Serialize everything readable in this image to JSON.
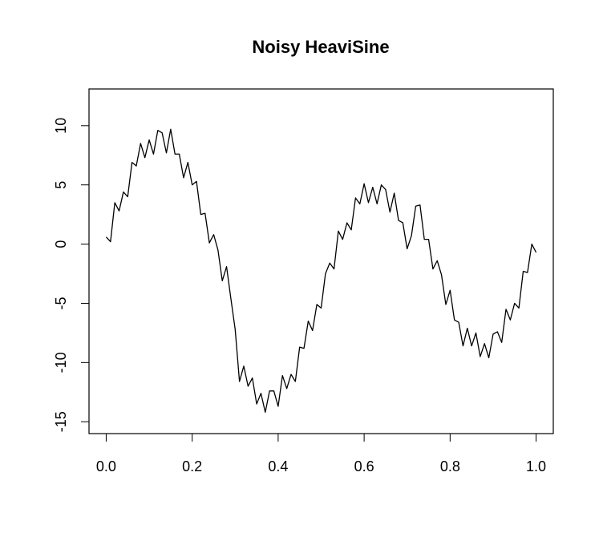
{
  "chart_data": {
    "type": "line",
    "title": "Noisy HeaviSine",
    "x": [
      0,
      0.01,
      0.02,
      0.03,
      0.04,
      0.05,
      0.06,
      0.07,
      0.08,
      0.09,
      0.1,
      0.11,
      0.12,
      0.13,
      0.14,
      0.15,
      0.16,
      0.17,
      0.18,
      0.19,
      0.2,
      0.21,
      0.22,
      0.23,
      0.24,
      0.25,
      0.26,
      0.27,
      0.28,
      0.29,
      0.3,
      0.31,
      0.32,
      0.33,
      0.34,
      0.35,
      0.36,
      0.37,
      0.38,
      0.39,
      0.4,
      0.41,
      0.42,
      0.43,
      0.44,
      0.45,
      0.46,
      0.47,
      0.48,
      0.49,
      0.5,
      0.51,
      0.52,
      0.53,
      0.54,
      0.55,
      0.56,
      0.57,
      0.58,
      0.59,
      0.6,
      0.61,
      0.62,
      0.63,
      0.64,
      0.65,
      0.66,
      0.67,
      0.68,
      0.69,
      0.7,
      0.71,
      0.72,
      0.73,
      0.74,
      0.75,
      0.76,
      0.77,
      0.78,
      0.79,
      0.8,
      0.81,
      0.82,
      0.83,
      0.84,
      0.85,
      0.86,
      0.87,
      0.88,
      0.89,
      0.9,
      0.91,
      0.92,
      0.93,
      0.94,
      0.95,
      0.96,
      0.97,
      0.98,
      0.99,
      1
    ],
    "y": [
      0.6,
      0.2,
      3.5,
      2.8,
      4.4,
      4.0,
      6.9,
      6.6,
      8.5,
      7.3,
      8.8,
      7.6,
      9.6,
      9.4,
      7.7,
      9.7,
      7.6,
      7.6,
      5.6,
      6.9,
      5.0,
      5.3,
      2.5,
      2.6,
      0.1,
      0.8,
      -0.5,
      -3.1,
      -1.9,
      -4.6,
      -7.2,
      -11.6,
      -10.3,
      -12.0,
      -11.3,
      -13.5,
      -12.6,
      -14.2,
      -12.4,
      -12.4,
      -13.7,
      -11.1,
      -12.2,
      -11.0,
      -11.6,
      -8.7,
      -8.8,
      -6.5,
      -7.3,
      -5.1,
      -5.4,
      -2.5,
      -1.6,
      -2.1,
      1.1,
      0.4,
      1.8,
      1.2,
      3.9,
      3.4,
      5.1,
      3.5,
      4.8,
      3.4,
      5.0,
      4.6,
      2.7,
      4.3,
      2.0,
      1.8,
      -0.4,
      0.7,
      3.2,
      3.3,
      0.4,
      0.4,
      -2.1,
      -1.4,
      -2.6,
      -5.1,
      -3.9,
      -6.4,
      -6.6,
      -8.6,
      -7.1,
      -8.6,
      -7.5,
      -9.5,
      -8.4,
      -9.6,
      -7.6,
      -7.4,
      -8.3,
      -5.5,
      -6.4,
      -5.0,
      -5.4,
      -2.3,
      -2.4,
      0.0,
      -0.7
    ],
    "color": "#000000",
    "xlim": [
      -0.04,
      1.04
    ],
    "xticks": [
      {
        "value": 0,
        "label": "0.0"
      },
      0.2,
      0.4,
      0.6,
      0.8,
      {
        "value": 1,
        "label": "1.0"
      }
    ],
    "ylim": [
      -16.0,
      13.1
    ],
    "yticks": [
      -15,
      -10,
      -5,
      0,
      5,
      10
    ]
  }
}
